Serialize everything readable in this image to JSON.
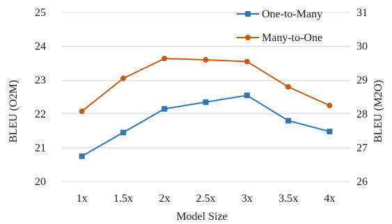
{
  "chart_data": {
    "type": "line",
    "xlabel": "Model Size",
    "ylabel_left": "BLEU (O2M)",
    "ylabel_right": "BLEU (M2O)",
    "categories": [
      "1x",
      "1.5x",
      "2x",
      "2.5x",
      "3x",
      "3.5x",
      "4x"
    ],
    "ylim_left": [
      20,
      25
    ],
    "ylim_right": [
      26,
      31
    ],
    "yticks_left": [
      20,
      21,
      22,
      23,
      24,
      25
    ],
    "yticks_right": [
      26,
      27,
      28,
      29,
      30,
      31
    ],
    "grid": true,
    "legend_position": "top-right",
    "series": [
      {
        "name": "One-to-Many",
        "axis": "left",
        "marker": "square",
        "color": "#2e75b6",
        "values": [
          20.75,
          21.45,
          22.15,
          22.35,
          22.55,
          21.8,
          21.48
        ]
      },
      {
        "name": "Many-to-One",
        "axis": "right",
        "marker": "circle",
        "color": "#c55a11",
        "values": [
          28.08,
          29.05,
          29.64,
          29.6,
          29.55,
          28.8,
          28.25
        ]
      }
    ]
  }
}
